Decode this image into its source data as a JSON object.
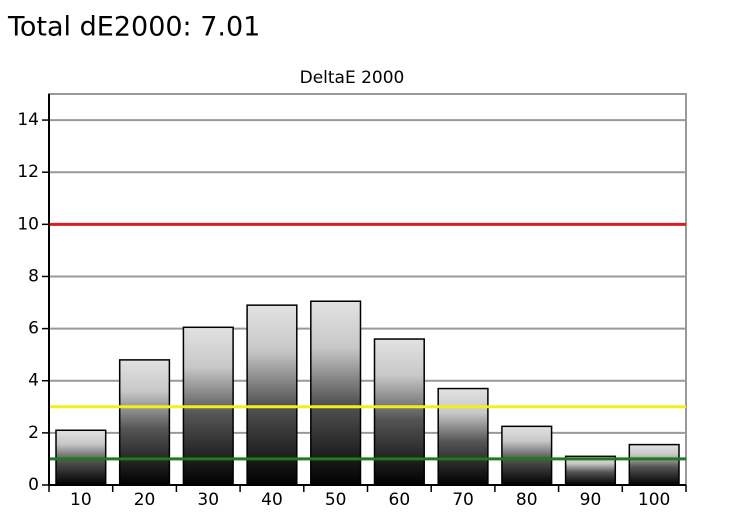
{
  "heading": "Total dE2000: 7.01",
  "chart_data": {
    "type": "bar",
    "title": "DeltaE 2000",
    "categories": [
      "10",
      "20",
      "30",
      "40",
      "50",
      "60",
      "70",
      "80",
      "90",
      "100"
    ],
    "values": [
      2.1,
      4.8,
      6.05,
      6.9,
      7.05,
      5.6,
      3.7,
      2.25,
      1.1,
      1.55
    ],
    "ylim": [
      0,
      15
    ],
    "yticks": [
      0,
      2,
      4,
      6,
      8,
      10,
      12,
      14
    ],
    "grid": true,
    "reference_lines": [
      {
        "value": 10,
        "color": "#d81e1e"
      },
      {
        "value": 3,
        "color": "#f2f01a"
      },
      {
        "value": 1,
        "color": "#1f7a1f"
      }
    ]
  }
}
